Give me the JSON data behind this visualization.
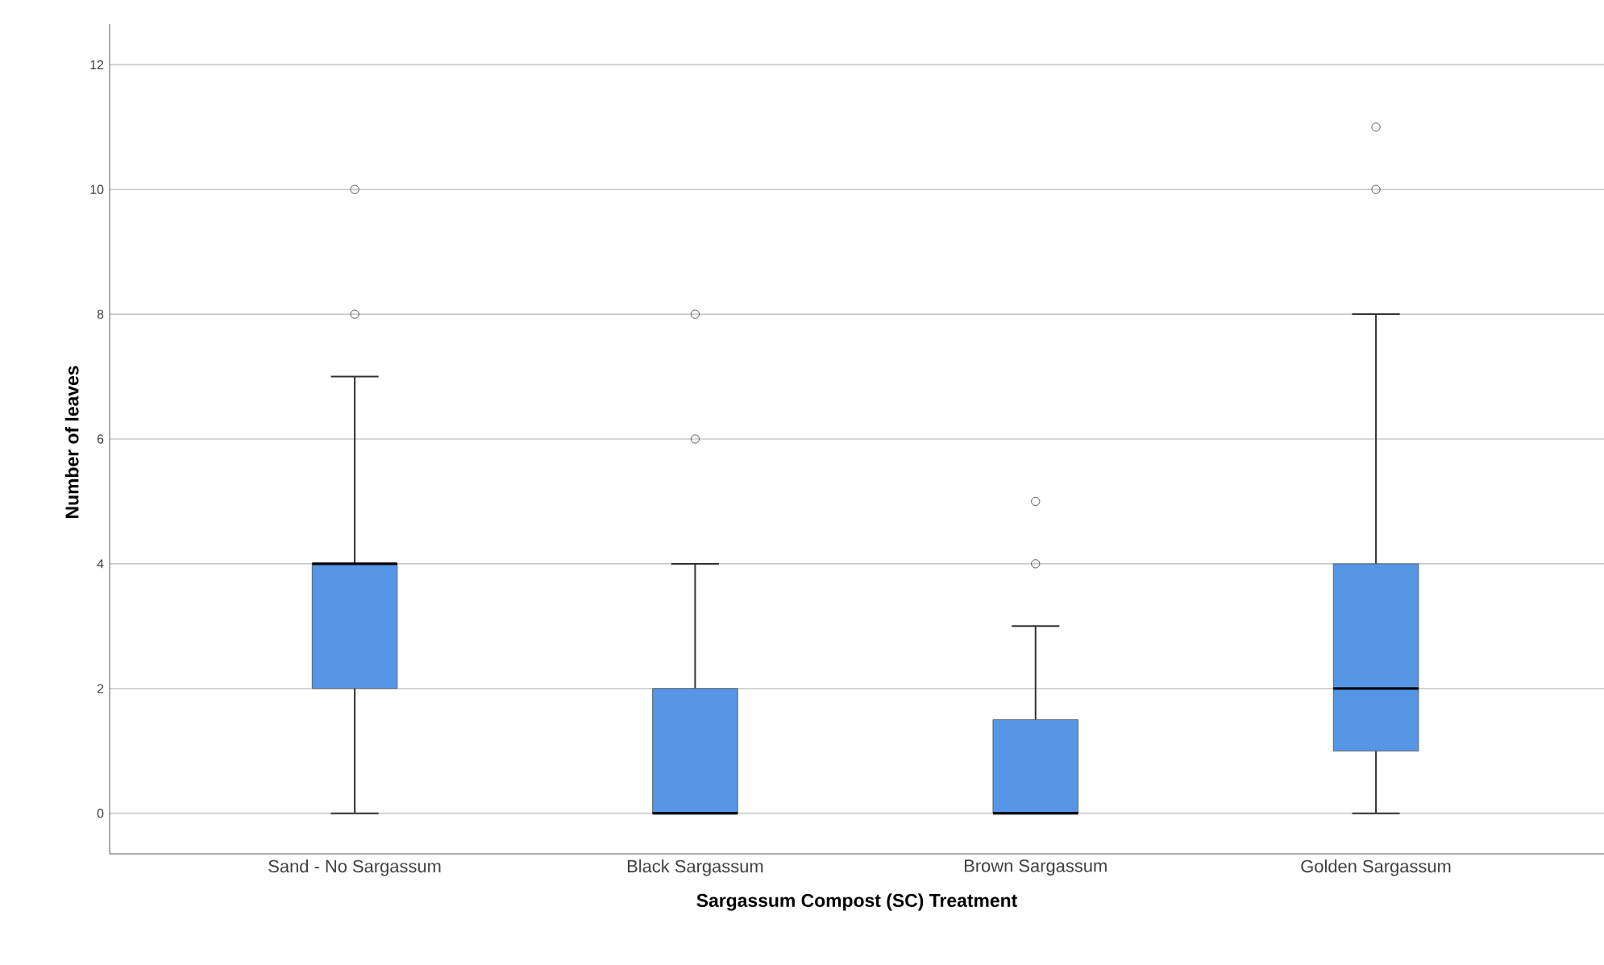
{
  "chart_data": {
    "type": "box",
    "xlabel": "Sargassum Compost (SC) Treatment",
    "ylabel": "Number of leaves",
    "categories": [
      "Sand - No Sargassum",
      "Black Sargassum",
      "Brown Sargassum",
      "Golden Sargassum"
    ],
    "color": "#5596e6",
    "boxes": [
      {
        "low": 0,
        "q1": 2,
        "median": 4,
        "q3": 4,
        "high": 7,
        "outliers": [
          8,
          10
        ]
      },
      {
        "low": 0,
        "q1": 0,
        "median": 0,
        "q3": 2,
        "high": 4,
        "outliers": [
          6,
          8
        ]
      },
      {
        "low": 0,
        "q1": 0,
        "median": 0,
        "q3": 1.5,
        "high": 3,
        "outliers": [
          4,
          5
        ]
      },
      {
        "low": 0,
        "q1": 1,
        "median": 2,
        "q3": 4,
        "high": 8,
        "outliers": [
          10,
          11
        ]
      }
    ],
    "ylim": [
      -0.65,
      12.65
    ],
    "yticks": [
      0,
      2,
      4,
      6,
      8,
      10,
      12
    ],
    "grid": "y"
  }
}
